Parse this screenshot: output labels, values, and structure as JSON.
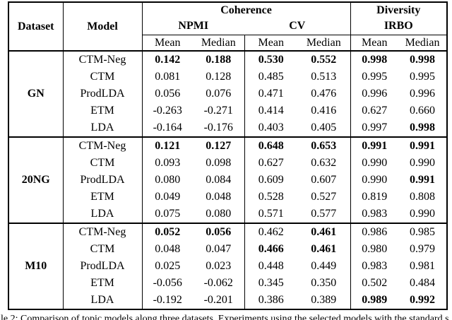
{
  "colors": {
    "background": "#ffffff",
    "text": "#000000",
    "border": "#000000"
  },
  "table": {
    "header": {
      "dataset": "Dataset",
      "model": "Model",
      "coherence": "Coherence",
      "diversity": "Diversity",
      "npmi": "NPMI",
      "cv": "CV",
      "irbo": "IRBO",
      "mean": "Mean",
      "median": "Median"
    },
    "blocks": [
      {
        "dataset": "GN",
        "rows": [
          {
            "model": "CTM-Neg",
            "values": [
              "0.142",
              "0.188",
              "0.530",
              "0.552",
              "0.998",
              "0.998"
            ],
            "bold": [
              true,
              true,
              true,
              true,
              true,
              true
            ]
          },
          {
            "model": "CTM",
            "values": [
              "0.081",
              "0.128",
              "0.485",
              "0.513",
              "0.995",
              "0.995"
            ],
            "bold": [
              false,
              false,
              false,
              false,
              false,
              false
            ]
          },
          {
            "model": "ProdLDA",
            "values": [
              "0.056",
              "0.076",
              "0.471",
              "0.476",
              "0.996",
              "0.996"
            ],
            "bold": [
              false,
              false,
              false,
              false,
              false,
              false
            ]
          },
          {
            "model": "ETM",
            "values": [
              "-0.263",
              "-0.271",
              "0.414",
              "0.416",
              "0.627",
              "0.660"
            ],
            "bold": [
              false,
              false,
              false,
              false,
              false,
              false
            ]
          },
          {
            "model": "LDA",
            "values": [
              "-0.164",
              "-0.176",
              "0.403",
              "0.405",
              "0.997",
              "0.998"
            ],
            "bold": [
              false,
              false,
              false,
              false,
              false,
              true
            ]
          }
        ]
      },
      {
        "dataset": "20NG",
        "rows": [
          {
            "model": "CTM-Neg",
            "values": [
              "0.121",
              "0.127",
              "0.648",
              "0.653",
              "0.991",
              "0.991"
            ],
            "bold": [
              true,
              true,
              true,
              true,
              true,
              true
            ]
          },
          {
            "model": "CTM",
            "values": [
              "0.093",
              "0.098",
              "0.627",
              "0.632",
              "0.990",
              "0.990"
            ],
            "bold": [
              false,
              false,
              false,
              false,
              false,
              false
            ]
          },
          {
            "model": "ProdLDA",
            "values": [
              "0.080",
              "0.084",
              "0.609",
              "0.607",
              "0.990",
              "0.991"
            ],
            "bold": [
              false,
              false,
              false,
              false,
              false,
              true
            ]
          },
          {
            "model": "ETM",
            "values": [
              "0.049",
              "0.048",
              "0.528",
              "0.527",
              "0.819",
              "0.808"
            ],
            "bold": [
              false,
              false,
              false,
              false,
              false,
              false
            ]
          },
          {
            "model": "LDA",
            "values": [
              "0.075",
              "0.080",
              "0.571",
              "0.577",
              "0.983",
              "0.990"
            ],
            "bold": [
              false,
              false,
              false,
              false,
              false,
              false
            ]
          }
        ]
      },
      {
        "dataset": "M10",
        "rows": [
          {
            "model": "CTM-Neg",
            "values": [
              "0.052",
              "0.056",
              "0.462",
              "0.461",
              "0.986",
              "0.985"
            ],
            "bold": [
              true,
              true,
              false,
              true,
              false,
              false
            ]
          },
          {
            "model": "CTM",
            "values": [
              "0.048",
              "0.047",
              "0.466",
              "0.461",
              "0.980",
              "0.979"
            ],
            "bold": [
              false,
              false,
              true,
              true,
              false,
              false
            ]
          },
          {
            "model": "ProdLDA",
            "values": [
              "0.025",
              "0.023",
              "0.448",
              "0.449",
              "0.983",
              "0.981"
            ],
            "bold": [
              false,
              false,
              false,
              false,
              false,
              false
            ]
          },
          {
            "model": "ETM",
            "values": [
              "-0.056",
              "-0.062",
              "0.345",
              "0.350",
              "0.502",
              "0.484"
            ],
            "bold": [
              false,
              false,
              false,
              false,
              false,
              false
            ]
          },
          {
            "model": "LDA",
            "values": [
              "-0.192",
              "-0.201",
              "0.386",
              "0.389",
              "0.989",
              "0.992"
            ],
            "bold": [
              false,
              false,
              false,
              false,
              true,
              true
            ]
          }
        ]
      }
    ]
  },
  "caption": "le 2: Comparison of topic models along three datasets.  Experiments using the selected models with the standard s"
}
